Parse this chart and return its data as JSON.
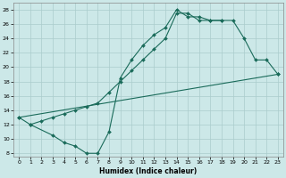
{
  "xlabel": "Humidex (Indice chaleur)",
  "bg_color": "#cce8e8",
  "grid_color": "#aacccc",
  "line_color": "#1a6b5a",
  "xlim": [
    -0.5,
    23.5
  ],
  "ylim": [
    7.5,
    29.0
  ],
  "yticks": [
    8,
    10,
    12,
    14,
    16,
    18,
    20,
    22,
    24,
    26,
    28
  ],
  "xticks": [
    0,
    1,
    2,
    3,
    4,
    5,
    6,
    7,
    8,
    9,
    10,
    11,
    12,
    13,
    14,
    15,
    16,
    17,
    18,
    19,
    20,
    21,
    22,
    23
  ],
  "line1_x": [
    0,
    1,
    2,
    3,
    4,
    5,
    6,
    7,
    8,
    9,
    10,
    11,
    12,
    13,
    14,
    15,
    16,
    17,
    18,
    19,
    20,
    21,
    22,
    23
  ],
  "line1_y": [
    13,
    12,
    12.5,
    13.0,
    13.5,
    14.0,
    14.5,
    15.0,
    16.5,
    18.0,
    19.5,
    21.0,
    22.5,
    24.0,
    27.5,
    27.5,
    26.5,
    26.5,
    26.5,
    26.5,
    24.0,
    21.0,
    21.0,
    19.0
  ],
  "line2_x": [
    1,
    3,
    4,
    5,
    6,
    7,
    8,
    9,
    10,
    11,
    12,
    13,
    14,
    15,
    16,
    17,
    18
  ],
  "line2_y": [
    12,
    10.5,
    9.5,
    9.0,
    8.0,
    8.0,
    11.0,
    18.5,
    21.0,
    23.0,
    24.5,
    25.5,
    28.0,
    27.0,
    27.0,
    26.5,
    26.5
  ],
  "line3_x": [
    0,
    23
  ],
  "line3_y": [
    13,
    19
  ]
}
